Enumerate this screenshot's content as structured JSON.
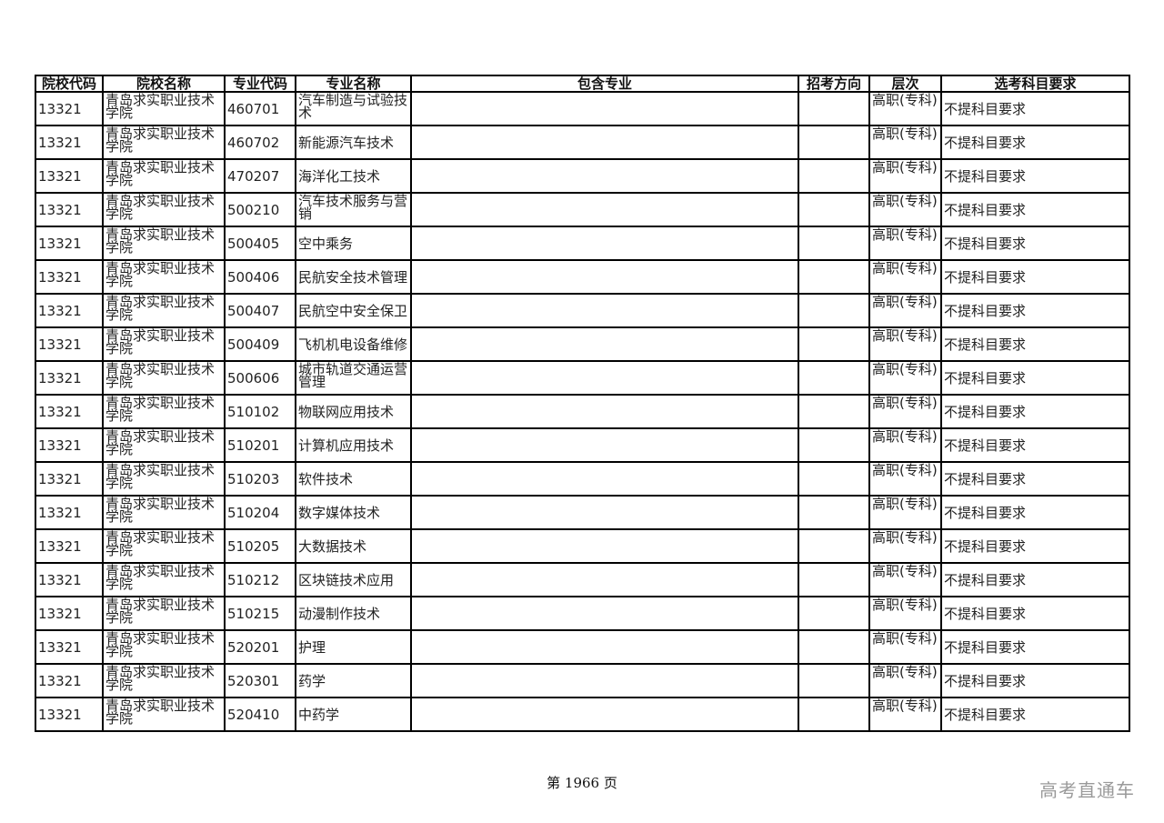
{
  "headers": [
    "院校代码",
    "院校名称",
    "专业代码",
    "专业名称",
    "包含专业",
    "招考方向",
    "层次",
    "选考科目要求"
  ],
  "rows": [
    {
      "school_code": "13321",
      "school_name": "青岛求实职业技术学院",
      "major_code": "460701",
      "major_name": "汽车制造与试验技术",
      "included": "",
      "direction": "",
      "level": "高职(专科)",
      "requirement": "不提科目要求"
    },
    {
      "school_code": "13321",
      "school_name": "青岛求实职业技术学院",
      "major_code": "460702",
      "major_name": "新能源汽车技术",
      "included": "",
      "direction": "",
      "level": "高职(专科)",
      "requirement": "不提科目要求"
    },
    {
      "school_code": "13321",
      "school_name": "青岛求实职业技术学院",
      "major_code": "470207",
      "major_name": "海洋化工技术",
      "included": "",
      "direction": "",
      "level": "高职(专科)",
      "requirement": "不提科目要求"
    },
    {
      "school_code": "13321",
      "school_name": "青岛求实职业技术学院",
      "major_code": "500210",
      "major_name": "汽车技术服务与营销",
      "included": "",
      "direction": "",
      "level": "高职(专科)",
      "requirement": "不提科目要求"
    },
    {
      "school_code": "13321",
      "school_name": "青岛求实职业技术学院",
      "major_code": "500405",
      "major_name": "空中乘务",
      "included": "",
      "direction": "",
      "level": "高职(专科)",
      "requirement": "不提科目要求"
    },
    {
      "school_code": "13321",
      "school_name": "青岛求实职业技术学院",
      "major_code": "500406",
      "major_name": "民航安全技术管理",
      "included": "",
      "direction": "",
      "level": "高职(专科)",
      "requirement": "不提科目要求"
    },
    {
      "school_code": "13321",
      "school_name": "青岛求实职业技术学院",
      "major_code": "500407",
      "major_name": "民航空中安全保卫",
      "included": "",
      "direction": "",
      "level": "高职(专科)",
      "requirement": "不提科目要求"
    },
    {
      "school_code": "13321",
      "school_name": "青岛求实职业技术学院",
      "major_code": "500409",
      "major_name": "飞机机电设备维修",
      "included": "",
      "direction": "",
      "level": "高职(专科)",
      "requirement": "不提科目要求"
    },
    {
      "school_code": "13321",
      "school_name": "青岛求实职业技术学院",
      "major_code": "500606",
      "major_name": "城市轨道交通运营管理",
      "included": "",
      "direction": "",
      "level": "高职(专科)",
      "requirement": "不提科目要求"
    },
    {
      "school_code": "13321",
      "school_name": "青岛求实职业技术学院",
      "major_code": "510102",
      "major_name": "物联网应用技术",
      "included": "",
      "direction": "",
      "level": "高职(专科)",
      "requirement": "不提科目要求"
    },
    {
      "school_code": "13321",
      "school_name": "青岛求实职业技术学院",
      "major_code": "510201",
      "major_name": "计算机应用技术",
      "included": "",
      "direction": "",
      "level": "高职(专科)",
      "requirement": "不提科目要求"
    },
    {
      "school_code": "13321",
      "school_name": "青岛求实职业技术学院",
      "major_code": "510203",
      "major_name": "软件技术",
      "included": "",
      "direction": "",
      "level": "高职(专科)",
      "requirement": "不提科目要求"
    },
    {
      "school_code": "13321",
      "school_name": "青岛求实职业技术学院",
      "major_code": "510204",
      "major_name": "数字媒体技术",
      "included": "",
      "direction": "",
      "level": "高职(专科)",
      "requirement": "不提科目要求"
    },
    {
      "school_code": "13321",
      "school_name": "青岛求实职业技术学院",
      "major_code": "510205",
      "major_name": "大数据技术",
      "included": "",
      "direction": "",
      "level": "高职(专科)",
      "requirement": "不提科目要求"
    },
    {
      "school_code": "13321",
      "school_name": "青岛求实职业技术学院",
      "major_code": "510212",
      "major_name": "区块链技术应用",
      "included": "",
      "direction": "",
      "level": "高职(专科)",
      "requirement": "不提科目要求"
    },
    {
      "school_code": "13321",
      "school_name": "青岛求实职业技术学院",
      "major_code": "510215",
      "major_name": "动漫制作技术",
      "included": "",
      "direction": "",
      "level": "高职(专科)",
      "requirement": "不提科目要求"
    },
    {
      "school_code": "13321",
      "school_name": "青岛求实职业技术学院",
      "major_code": "520201",
      "major_name": "护理",
      "included": "",
      "direction": "",
      "level": "高职(专科)",
      "requirement": "不提科目要求"
    },
    {
      "school_code": "13321",
      "school_name": "青岛求实职业技术学院",
      "major_code": "520301",
      "major_name": "药学",
      "included": "",
      "direction": "",
      "level": "高职(专科)",
      "requirement": "不提科目要求"
    },
    {
      "school_code": "13321",
      "school_name": "青岛求实职业技术学院",
      "major_code": "520410",
      "major_name": "中药学",
      "included": "",
      "direction": "",
      "level": "高职(专科)",
      "requirement": "不提科目要求"
    }
  ],
  "footer": {
    "page_label": "第 1966 页"
  },
  "watermark": "高考直通车"
}
